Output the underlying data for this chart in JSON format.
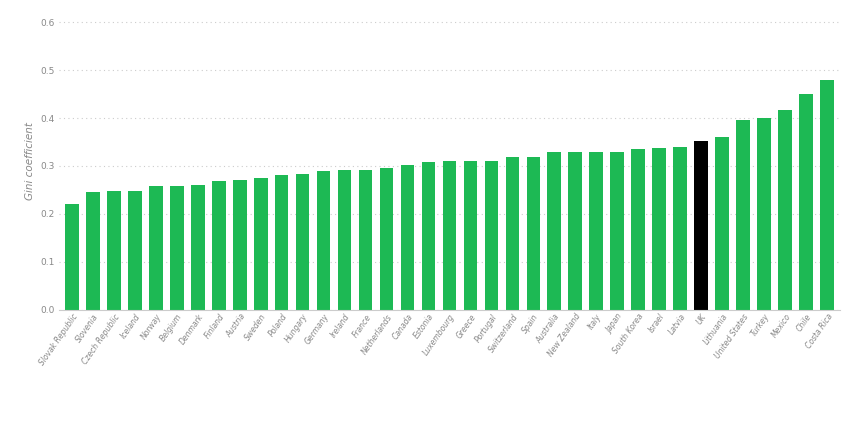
{
  "countries": [
    "Slovak Republic",
    "Slovenia",
    "Czech Republic",
    "Iceland",
    "Norway",
    "Belgium",
    "Denmark",
    "Finland",
    "Austria",
    "Sweden",
    "Poland",
    "Hungary",
    "Germany",
    "Ireland",
    "France",
    "Netherlands",
    "Canada",
    "Estonia",
    "Luxembourg",
    "Greece",
    "Portugal",
    "Switzerland",
    "Spain",
    "Australia",
    "New Zealand",
    "Italy",
    "Japan",
    "South Korea",
    "Israel",
    "Latvia",
    "UK",
    "Lithuania",
    "United States",
    "Turkey",
    "Mexico",
    "Chile",
    "Costa Rica"
  ],
  "values": [
    0.22,
    0.246,
    0.248,
    0.247,
    0.257,
    0.259,
    0.26,
    0.269,
    0.271,
    0.275,
    0.281,
    0.283,
    0.289,
    0.291,
    0.292,
    0.295,
    0.301,
    0.308,
    0.31,
    0.31,
    0.31,
    0.318,
    0.318,
    0.33,
    0.33,
    0.33,
    0.33,
    0.335,
    0.338,
    0.34,
    0.351,
    0.36,
    0.395,
    0.4,
    0.416,
    0.45,
    0.48
  ],
  "bar_color_default": "#1db954",
  "bar_color_uk": "#000000",
  "uk_index": 30,
  "ylabel": "Gini coefficient",
  "ylim": [
    0,
    0.62
  ],
  "yticks": [
    0.0,
    0.1,
    0.2,
    0.3,
    0.4,
    0.5,
    0.6
  ],
  "grid_color": "#cccccc",
  "background_color": "#ffffff",
  "bar_width": 0.65,
  "tick_label_fontsize": 5.5,
  "ylabel_fontsize": 7.5
}
